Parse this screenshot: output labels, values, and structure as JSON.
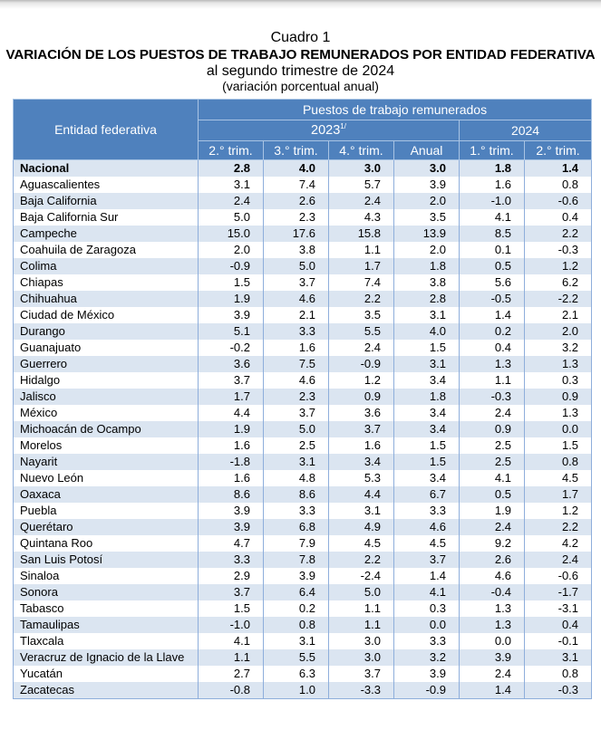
{
  "header": {
    "label": "Cuadro 1",
    "title": "VARIACIÓN DE LOS PUESTOS DE TRABAJO REMUNERADOS POR ENTIDAD FEDERATIVA",
    "subtitle": "al segundo trimestre de 2024",
    "unit": "(variación porcentual anual)"
  },
  "table": {
    "entity_header": "Entidad federativa",
    "group_header": "Puestos de trabajo remunerados",
    "year_2023": "2023",
    "year_2023_note": "1/",
    "year_2024": "2024",
    "columns": [
      "2.° trim.",
      "3.° trim.",
      "4.° trim.",
      "Anual",
      "1.° trim.",
      "2.° trim."
    ],
    "rows": [
      {
        "name": "Nacional",
        "values": [
          "2.8",
          "4.0",
          "3.0",
          "3.0",
          "1.8",
          "1.4"
        ]
      },
      {
        "name": "Aguascalientes",
        "values": [
          "3.1",
          "7.4",
          "5.7",
          "3.9",
          "1.6",
          "0.8"
        ]
      },
      {
        "name": "Baja California",
        "values": [
          "2.4",
          "2.6",
          "2.4",
          "2.0",
          "-1.0",
          "-0.6"
        ]
      },
      {
        "name": "Baja California Sur",
        "values": [
          "5.0",
          "2.3",
          "4.3",
          "3.5",
          "4.1",
          "0.4"
        ]
      },
      {
        "name": "Campeche",
        "values": [
          "15.0",
          "17.6",
          "15.8",
          "13.9",
          "8.5",
          "2.2"
        ]
      },
      {
        "name": "Coahuila de Zaragoza",
        "values": [
          "2.0",
          "3.8",
          "1.1",
          "2.0",
          "0.1",
          "-0.3"
        ]
      },
      {
        "name": "Colima",
        "values": [
          "-0.9",
          "5.0",
          "1.7",
          "1.8",
          "0.5",
          "1.2"
        ]
      },
      {
        "name": "Chiapas",
        "values": [
          "1.5",
          "3.7",
          "7.4",
          "3.8",
          "5.6",
          "6.2"
        ]
      },
      {
        "name": "Chihuahua",
        "values": [
          "1.9",
          "4.6",
          "2.2",
          "2.8",
          "-0.5",
          "-2.2"
        ]
      },
      {
        "name": "Ciudad de México",
        "values": [
          "3.9",
          "2.1",
          "3.5",
          "3.1",
          "1.4",
          "2.1"
        ]
      },
      {
        "name": "Durango",
        "values": [
          "5.1",
          "3.3",
          "5.5",
          "4.0",
          "0.2",
          "2.0"
        ]
      },
      {
        "name": "Guanajuato",
        "values": [
          "-0.2",
          "1.6",
          "2.4",
          "1.5",
          "0.4",
          "3.2"
        ]
      },
      {
        "name": "Guerrero",
        "values": [
          "3.6",
          "7.5",
          "-0.9",
          "3.1",
          "1.3",
          "1.3"
        ]
      },
      {
        "name": "Hidalgo",
        "values": [
          "3.7",
          "4.6",
          "1.2",
          "3.4",
          "1.1",
          "0.3"
        ]
      },
      {
        "name": "Jalisco",
        "values": [
          "1.7",
          "2.3",
          "0.9",
          "1.8",
          "-0.3",
          "0.9"
        ]
      },
      {
        "name": "México",
        "values": [
          "4.4",
          "3.7",
          "3.6",
          "3.4",
          "2.4",
          "1.3"
        ]
      },
      {
        "name": "Michoacán de Ocampo",
        "values": [
          "1.9",
          "5.0",
          "3.7",
          "3.4",
          "0.9",
          "0.0"
        ]
      },
      {
        "name": "Morelos",
        "values": [
          "1.6",
          "2.5",
          "1.6",
          "1.5",
          "2.5",
          "1.5"
        ]
      },
      {
        "name": "Nayarit",
        "values": [
          "-1.8",
          "3.1",
          "3.4",
          "1.5",
          "2.5",
          "0.8"
        ]
      },
      {
        "name": "Nuevo León",
        "values": [
          "1.6",
          "4.8",
          "5.3",
          "3.4",
          "4.1",
          "4.5"
        ]
      },
      {
        "name": "Oaxaca",
        "values": [
          "8.6",
          "8.6",
          "4.4",
          "6.7",
          "0.5",
          "1.7"
        ]
      },
      {
        "name": "Puebla",
        "values": [
          "3.9",
          "3.3",
          "3.1",
          "3.3",
          "1.9",
          "1.2"
        ]
      },
      {
        "name": "Querétaro",
        "values": [
          "3.9",
          "6.8",
          "4.9",
          "4.6",
          "2.4",
          "2.2"
        ]
      },
      {
        "name": "Quintana Roo",
        "values": [
          "4.7",
          "7.9",
          "4.5",
          "4.5",
          "9.2",
          "4.2"
        ]
      },
      {
        "name": "San Luis Potosí",
        "values": [
          "3.3",
          "7.8",
          "2.2",
          "3.7",
          "2.6",
          "2.4"
        ]
      },
      {
        "name": "Sinaloa",
        "values": [
          "2.9",
          "3.9",
          "-2.4",
          "1.4",
          "4.6",
          "-0.6"
        ]
      },
      {
        "name": "Sonora",
        "values": [
          "3.7",
          "6.4",
          "5.0",
          "4.1",
          "-0.4",
          "-1.7"
        ]
      },
      {
        "name": "Tabasco",
        "values": [
          "1.5",
          "0.2",
          "1.1",
          "0.3",
          "1.3",
          "-3.1"
        ]
      },
      {
        "name": "Tamaulipas",
        "values": [
          "-1.0",
          "0.8",
          "1.1",
          "0.0",
          "1.3",
          "0.4"
        ]
      },
      {
        "name": "Tlaxcala",
        "values": [
          "4.1",
          "3.1",
          "3.0",
          "3.3",
          "0.0",
          "-0.1"
        ]
      },
      {
        "name": "Veracruz de Ignacio de la Llave",
        "values": [
          "1.1",
          "5.5",
          "3.0",
          "3.2",
          "3.9",
          "3.1"
        ]
      },
      {
        "name": "Yucatán",
        "values": [
          "2.7",
          "6.3",
          "3.7",
          "3.9",
          "2.4",
          "0.8"
        ]
      },
      {
        "name": "Zacatecas",
        "values": [
          "-0.8",
          "1.0",
          "-3.3",
          "-0.9",
          "1.4",
          "-0.3"
        ]
      }
    ]
  },
  "colors": {
    "header_bg": "#4f81bd",
    "row_shade": "#dbe5f1",
    "grid": "#8eaedb"
  }
}
